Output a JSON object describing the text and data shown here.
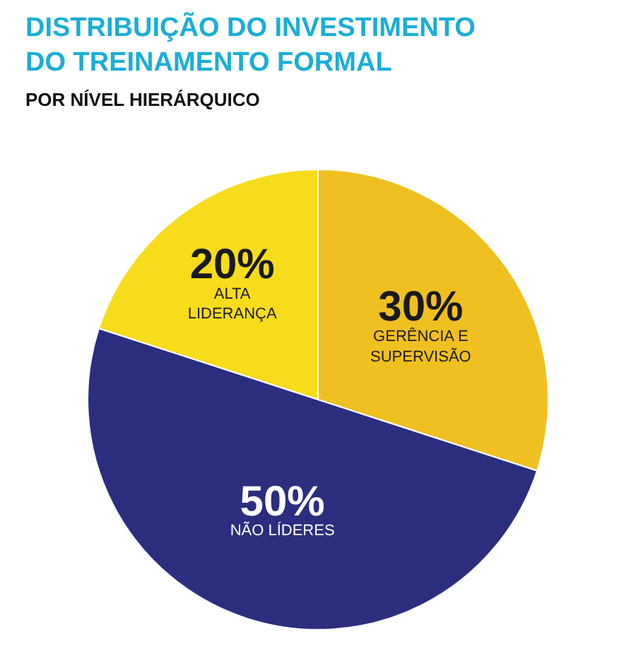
{
  "chart_data": {
    "type": "pie",
    "title": "DISTRIBUIÇÃO DO INVESTIMENTO DO TREINAMENTO FORMAL",
    "subtitle": "POR NÍVEL HIERÁRQUICO",
    "categories": [
      "ALTA LIDERANÇA",
      "GERÊNCIA E SUPERVISÃO",
      "NÃO LÍDERES"
    ],
    "values": [
      20,
      30,
      50
    ],
    "value_labels": [
      "20%",
      "30%",
      "50%"
    ],
    "colors": [
      "#f7dc1c",
      "#f0c020",
      "#2b2e7e"
    ],
    "legend": false
  }
}
